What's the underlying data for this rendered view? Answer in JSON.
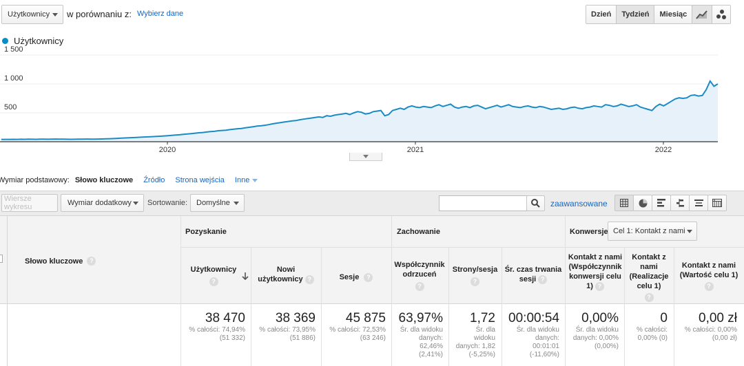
{
  "controls": {
    "metric_select": "Użytkownicy",
    "compare_label": "w porównaniu z:",
    "select_data_link": "Wybierz dane",
    "period_buttons": [
      "Dzień",
      "Tydzień",
      "Miesiąc"
    ],
    "active_period": "Tydzień"
  },
  "chart": {
    "legend": "Użytkownicy",
    "legend_color": "#058dc7",
    "line_color": "#1a8bc4",
    "fill_color": "#e6f1fa"
  },
  "chart_data": {
    "type": "area",
    "series": [
      {
        "name": "Użytkownicy",
        "values": [
          40,
          41,
          40,
          42,
          41,
          43,
          42,
          44,
          43,
          42,
          44,
          45,
          43,
          44,
          46,
          45,
          44,
          43,
          42,
          43,
          44,
          45,
          46,
          45,
          44,
          46,
          48,
          50,
          52,
          55,
          58,
          62,
          65,
          68,
          72,
          75,
          78,
          82,
          85,
          88,
          92,
          95,
          100,
          105,
          110,
          115,
          120,
          128,
          135,
          140,
          148,
          155,
          160,
          168,
          175,
          180,
          190,
          195,
          200,
          210,
          218,
          225,
          230,
          240,
          250,
          260,
          270,
          275,
          285,
          295,
          310,
          320,
          330,
          340,
          350,
          360,
          365,
          380,
          390,
          400,
          410,
          420,
          430,
          420,
          450,
          440,
          460,
          470,
          480,
          490,
          470,
          500,
          520,
          510,
          480,
          490,
          520,
          530,
          540,
          450,
          470,
          540,
          560,
          580,
          560,
          600,
          620,
          600,
          590,
          610,
          600,
          590,
          620,
          640,
          610,
          630,
          650,
          600,
          580,
          600,
          610,
          590,
          620,
          630,
          600,
          570,
          590,
          610,
          630,
          600,
          620,
          640,
          610,
          600,
          590,
          610,
          620,
          600,
          590,
          610,
          600,
          580,
          560,
          570,
          580,
          560,
          570,
          590,
          600,
          580,
          570,
          590,
          600,
          620,
          610,
          600,
          640,
          630,
          610,
          620,
          650,
          630,
          610,
          620,
          640,
          600,
          580,
          560,
          540,
          610,
          650,
          620,
          660,
          700,
          740,
          760,
          750,
          760,
          800,
          810,
          790,
          800,
          900,
          1050,
          960,
          1000
        ]
      }
    ],
    "x_labels": [
      "2020",
      "2021",
      "2022"
    ],
    "y_ticks": [
      "500",
      "1 000",
      "1 500"
    ],
    "ylim": [
      0,
      1600
    ],
    "grid": true
  },
  "dimension_bar": {
    "label": "Wymiar podstawowy:",
    "active": "Słowo kluczowe",
    "others": [
      "Źródło",
      "Strona wejścia"
    ],
    "more": "Inne"
  },
  "toolbar": {
    "plot_rows": "Wiersze wykresu",
    "secondary_dim": "Wymiar dodatkowy",
    "sort_label": "Sortowanie:",
    "sort_value": "Domyślne",
    "advanced": "zaawansowane"
  },
  "table": {
    "keyword_header": "Słowo kluczowe",
    "groups": {
      "acquisition": "Pozyskanie",
      "behavior": "Zachowanie",
      "conversions": "Konwersje",
      "goal_select": "Cel 1: Kontakt z nami"
    },
    "headers": {
      "users": "Użytkownicy",
      "new_users": "Nowi użytkownicy",
      "sessions": "Sesje",
      "bounce": "Współczynnik odrzuceń",
      "pages": "Strony/sesja",
      "duration": "Śr. czas trwania sesji",
      "conv_rate": "Kontakt z nami (Współczynnik konwersji celu 1)",
      "completions": "Kontakt z nami (Realizacje celu 1)",
      "value": "Kontakt z nami (Wartość celu 1)"
    },
    "totals": {
      "users": {
        "value": "38 470",
        "sub1": "% całości: 74,94%",
        "sub2": "(51 332)"
      },
      "new_users": {
        "value": "38 369",
        "sub1": "% całości: 73,95%",
        "sub2": "(51 886)"
      },
      "sessions": {
        "value": "45 875",
        "sub1": "% całości: 72,53%",
        "sub2": "(63 246)"
      },
      "bounce": {
        "value": "63,97%",
        "sub1": "Śr. dla widoku",
        "sub2": "danych:",
        "sub3": "62,46%",
        "sub4": "(2,41%)"
      },
      "pages": {
        "value": "1,72",
        "sub1": "Śr. dla",
        "sub2": "widoku",
        "sub3": "danych: 1,82",
        "sub4": "(-5,25%)"
      },
      "duration": {
        "value": "00:00:54",
        "sub1": "Śr. dla widoku",
        "sub2": "danych:",
        "sub3": "00:01:01",
        "sub4": "(-11,60%)"
      },
      "conv_rate": {
        "value": "0,00%",
        "sub1": "Śr. dla widoku",
        "sub2": "danych: 0,00%",
        "sub3": "(0,00%)"
      },
      "completions": {
        "value": "0",
        "sub1": "% całości:",
        "sub2": "0,00% (0)"
      },
      "value": {
        "value": "0,00 zł",
        "sub1": "% całości: 0,00%",
        "sub2": "(0,00 zł)"
      }
    }
  }
}
